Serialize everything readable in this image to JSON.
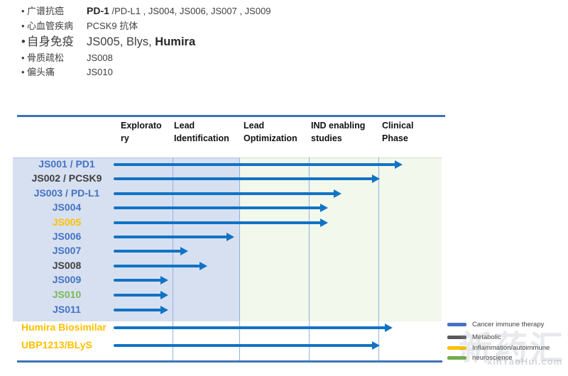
{
  "summary": {
    "bullet": "•",
    "lines": [
      {
        "category": "广谱抗癌",
        "value_bold": "PD-1",
        "value_rest": " /PD-L1 , JS004, JS006, JS007 , JS009"
      },
      {
        "category": "心血管疾病",
        "value": "PCSK9 抗体"
      },
      {
        "category": "自身免疫",
        "value_pre": "JS005, Blys, ",
        "value_bold": "Humira"
      },
      {
        "category": "骨质疏松",
        "value": "JS008"
      },
      {
        "category": "偏头痛",
        "value": "JS010"
      }
    ]
  },
  "chart_data": {
    "type": "gantt",
    "title": "",
    "phases": [
      "Exploratory",
      "Lead Identification",
      "Lead Optimization",
      "IND enabling studies",
      "Clinical Phase"
    ],
    "phase_scale_note": "end_phase: 0=start, 1=end of Exploratory, 2=end of Lead Identification, 3=end of Lead Optimization, 4=end of IND enabling studies, 5=end of Clinical Phase",
    "rows": [
      {
        "label": "JS001 / PD1",
        "color": "#4372c4",
        "end_phase": 4.38,
        "section": "main"
      },
      {
        "label": "JS002 / PCSK9",
        "color": "#3f3f3f",
        "end_phase": 4.02,
        "section": "main"
      },
      {
        "label": "JS003 / PD-L1",
        "color": "#4372c4",
        "end_phase": 3.47,
        "section": "main"
      },
      {
        "label": "JS004",
        "color": "#4372c4",
        "end_phase": 3.28,
        "section": "main"
      },
      {
        "label": "JS005",
        "color": "#ffc000",
        "end_phase": 3.28,
        "section": "main"
      },
      {
        "label": "JS006",
        "color": "#4372c4",
        "end_phase": 1.93,
        "section": "main"
      },
      {
        "label": "JS007",
        "color": "#4372c4",
        "end_phase": 1.23,
        "section": "main"
      },
      {
        "label": "JS008",
        "color": "#3f3f3f",
        "end_phase": 1.52,
        "section": "main"
      },
      {
        "label": "JS009",
        "color": "#4372c4",
        "end_phase": 0.93,
        "section": "main"
      },
      {
        "label": "JS010",
        "color": "#7cb75c",
        "end_phase": 0.93,
        "section": "main"
      },
      {
        "label": "JS011",
        "color": "#4372c4",
        "end_phase": 0.93,
        "section": "main"
      },
      {
        "label": "Humira Biosimilar",
        "color": "#ffc000",
        "end_phase": 4.22,
        "section": "below"
      },
      {
        "label": "UBP1213/BLyS",
        "color": "#ffc000",
        "end_phase": 4.02,
        "section": "below"
      }
    ],
    "arrow_color": "#1173c6",
    "legend": [
      {
        "label": "Cancer immune therapy",
        "color": "#4472c4"
      },
      {
        "label": "Metabolic",
        "color": "#595959"
      },
      {
        "label": "Inflammation/autoimmune",
        "color": "#ffc000"
      },
      {
        "label": "neuroscience",
        "color": "#70ad47"
      }
    ],
    "legend_position": "bottom-right"
  },
  "watermark": {
    "cn": "新药汇",
    "url": "xinYaoHui.com"
  }
}
